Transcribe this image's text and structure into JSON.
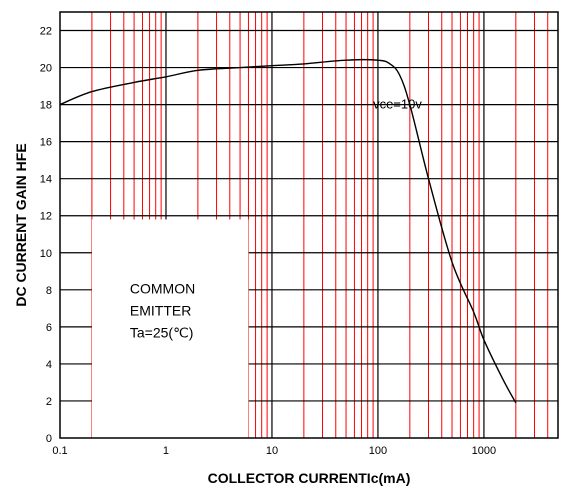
{
  "chart_data": {
    "type": "line",
    "x_scale": "log",
    "xlim": [
      0.1,
      5000
    ],
    "ylim": [
      0,
      23
    ],
    "xlabel": "COLLECTOR CURRENTIc(mA)",
    "ylabel": "DC CURRENT GAIN  HFE",
    "x_tick_labels": [
      "0.1",
      "1",
      "10",
      "100",
      "1000"
    ],
    "x_ticks": [
      0.1,
      1,
      10,
      100,
      1000
    ],
    "y_ticks": [
      0,
      2,
      4,
      6,
      8,
      10,
      12,
      14,
      16,
      18,
      20,
      22
    ],
    "grid": true,
    "grid_color": "#ff0000",
    "axis_color": "#000000",
    "series": [
      {
        "name": "vce=10v",
        "color": "#000000",
        "x": [
          0.1,
          0.2,
          0.5,
          1,
          2,
          5,
          10,
          20,
          50,
          100,
          130,
          160,
          200,
          300,
          500,
          800,
          1000,
          1500,
          2000
        ],
        "y": [
          18.0,
          18.7,
          19.2,
          19.5,
          19.85,
          20.0,
          20.1,
          20.2,
          20.4,
          20.4,
          20.2,
          19.6,
          18.0,
          14.0,
          9.5,
          6.8,
          5.3,
          3.2,
          1.9
        ]
      }
    ],
    "annotations": [
      {
        "text": "vce=10v",
        "x": 90,
        "y": 17.8
      }
    ],
    "note_box": {
      "lines": [
        "COMMON",
        "EMITTER",
        "Ta=25(℃)"
      ],
      "x_range": [
        0.2,
        6
      ],
      "y_range": [
        0,
        11.8
      ]
    }
  }
}
